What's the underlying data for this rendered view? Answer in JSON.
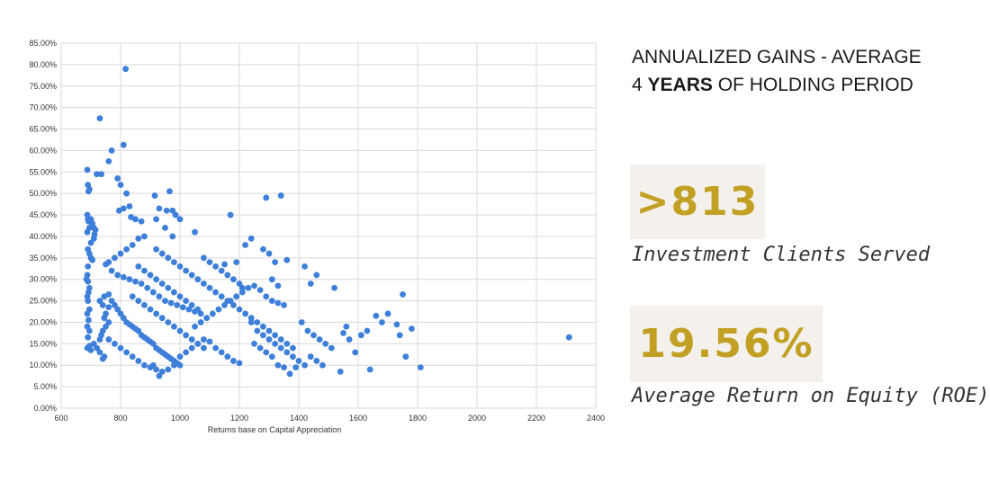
{
  "headline": {
    "line1": "ANNUALIZED GAINS - AVERAGE",
    "line2_prefix": "4 ",
    "line2_bold": "YEARS",
    "line2_suffix": " OF HOLDING PERIOD"
  },
  "stats": [
    {
      "value": ">813",
      "caption": "Investment Clients Served"
    },
    {
      "value": "19.56%",
      "caption": "Average Return on Equity (ROE)"
    }
  ],
  "colors": {
    "point": "#3d7fd9",
    "accent": "#c2a023",
    "stat_bg": "#f4f1ec"
  },
  "chart_data": {
    "type": "scatter",
    "title": "",
    "xlabel": "Returns base on Capital Appreciation",
    "ylabel": "",
    "xlim": [
      600,
      2400
    ],
    "ylim": [
      0,
      85
    ],
    "x_ticks": [
      600,
      800,
      1000,
      1200,
      1400,
      1600,
      1800,
      2000,
      2200,
      2400
    ],
    "y_ticks": [
      0,
      5,
      10,
      15,
      20,
      25,
      30,
      35,
      40,
      45,
      50,
      55,
      60,
      65,
      70,
      75,
      80,
      85
    ],
    "y_tick_labels": [
      "0.00%",
      "5.00%",
      "10.00%",
      "15.00%",
      "20.00%",
      "25.00%",
      "30.00%",
      "35.00%",
      "40.00%",
      "45.00%",
      "50.00%",
      "55.00%",
      "60.00%",
      "65.00%",
      "70.00%",
      "75.00%",
      "80.00%",
      "85.00%"
    ],
    "grid": true,
    "legend": "none",
    "points": [
      [
        688,
        55.5
      ],
      [
        690,
        52
      ],
      [
        695,
        51
      ],
      [
        692,
        50.5
      ],
      [
        688,
        45
      ],
      [
        690,
        44
      ],
      [
        692,
        43.5
      ],
      [
        695,
        42
      ],
      [
        688,
        41
      ],
      [
        700,
        44
      ],
      [
        705,
        43
      ],
      [
        710,
        42
      ],
      [
        715,
        41.5
      ],
      [
        712,
        40.5
      ],
      [
        710,
        39.5
      ],
      [
        700,
        38.5
      ],
      [
        690,
        37
      ],
      [
        695,
        36
      ],
      [
        700,
        35
      ],
      [
        705,
        34.5
      ],
      [
        690,
        33
      ],
      [
        688,
        31
      ],
      [
        685,
        30
      ],
      [
        690,
        29.5
      ],
      [
        695,
        28
      ],
      [
        692,
        27
      ],
      [
        688,
        26
      ],
      [
        690,
        25
      ],
      [
        695,
        23
      ],
      [
        688,
        22
      ],
      [
        692,
        20.5
      ],
      [
        688,
        19
      ],
      [
        695,
        18
      ],
      [
        690,
        16.5
      ],
      [
        688,
        14
      ],
      [
        695,
        14.5
      ],
      [
        700,
        13.5
      ],
      [
        710,
        15
      ],
      [
        720,
        14
      ],
      [
        730,
        13
      ],
      [
        740,
        11.5
      ],
      [
        745,
        12
      ],
      [
        735,
        17
      ],
      [
        730,
        16
      ],
      [
        740,
        18
      ],
      [
        750,
        19
      ],
      [
        760,
        20
      ],
      [
        745,
        21
      ],
      [
        750,
        22
      ],
      [
        760,
        23.5
      ],
      [
        740,
        24
      ],
      [
        730,
        25
      ],
      [
        745,
        26
      ],
      [
        760,
        26.5
      ],
      [
        770,
        25
      ],
      [
        780,
        24
      ],
      [
        790,
        23
      ],
      [
        800,
        22
      ],
      [
        810,
        21
      ],
      [
        820,
        20
      ],
      [
        830,
        19.5
      ],
      [
        840,
        19
      ],
      [
        850,
        18.5
      ],
      [
        860,
        18
      ],
      [
        870,
        17
      ],
      [
        880,
        16.5
      ],
      [
        890,
        16
      ],
      [
        900,
        15.5
      ],
      [
        910,
        15
      ],
      [
        920,
        14
      ],
      [
        930,
        13.5
      ],
      [
        940,
        13
      ],
      [
        950,
        12.5
      ],
      [
        960,
        12
      ],
      [
        970,
        11.5
      ],
      [
        980,
        11
      ],
      [
        990,
        10.5
      ],
      [
        1000,
        10
      ],
      [
        760,
        16
      ],
      [
        780,
        15
      ],
      [
        800,
        14
      ],
      [
        820,
        13
      ],
      [
        840,
        12
      ],
      [
        860,
        11
      ],
      [
        880,
        10
      ],
      [
        900,
        9.5
      ],
      [
        920,
        9
      ],
      [
        940,
        8.5
      ],
      [
        930,
        7.5
      ],
      [
        910,
        10
      ],
      [
        960,
        9
      ],
      [
        980,
        10
      ],
      [
        1000,
        12
      ],
      [
        1020,
        13
      ],
      [
        1040,
        14
      ],
      [
        1060,
        15
      ],
      [
        1080,
        16
      ],
      [
        1100,
        15.5
      ],
      [
        1120,
        14
      ],
      [
        1140,
        13
      ],
      [
        1160,
        12
      ],
      [
        1180,
        11
      ],
      [
        1200,
        10.5
      ],
      [
        1050,
        19
      ],
      [
        1070,
        20
      ],
      [
        1090,
        21
      ],
      [
        1110,
        22
      ],
      [
        1130,
        23
      ],
      [
        1150,
        24
      ],
      [
        1170,
        25
      ],
      [
        1190,
        26
      ],
      [
        1210,
        27
      ],
      [
        1230,
        28
      ],
      [
        1250,
        28.5
      ],
      [
        1270,
        27.5
      ],
      [
        1290,
        26
      ],
      [
        1310,
        25
      ],
      [
        1330,
        24.5
      ],
      [
        1350,
        24
      ],
      [
        1240,
        20
      ],
      [
        1260,
        18
      ],
      [
        1280,
        17
      ],
      [
        1300,
        16
      ],
      [
        1320,
        15
      ],
      [
        1340,
        14
      ],
      [
        1360,
        13
      ],
      [
        1380,
        12
      ],
      [
        1400,
        11
      ],
      [
        1420,
        10
      ],
      [
        1250,
        15
      ],
      [
        1270,
        14
      ],
      [
        1290,
        13
      ],
      [
        1310,
        12
      ],
      [
        1330,
        10
      ],
      [
        1350,
        9.5
      ],
      [
        1370,
        8
      ],
      [
        1390,
        9.5
      ],
      [
        1410,
        20
      ],
      [
        1430,
        18
      ],
      [
        1450,
        17
      ],
      [
        1470,
        16
      ],
      [
        1490,
        15
      ],
      [
        1510,
        14
      ],
      [
        1440,
        12
      ],
      [
        1460,
        11
      ],
      [
        1480,
        10
      ],
      [
        1540,
        8.5
      ],
      [
        1550,
        17.5
      ],
      [
        1560,
        19
      ],
      [
        1570,
        16
      ],
      [
        1590,
        13
      ],
      [
        1610,
        17
      ],
      [
        1630,
        18
      ],
      [
        1640,
        9
      ],
      [
        1660,
        21.5
      ],
      [
        1680,
        20
      ],
      [
        1700,
        22
      ],
      [
        1730,
        19.5
      ],
      [
        1740,
        17
      ],
      [
        1750,
        26.5
      ],
      [
        1760,
        12
      ],
      [
        1780,
        18.5
      ],
      [
        1810,
        9.5
      ],
      [
        2310,
        16.5
      ],
      [
        730,
        67.5
      ],
      [
        770,
        60
      ],
      [
        810,
        61.3
      ],
      [
        817,
        79
      ],
      [
        760,
        57.5
      ],
      [
        735,
        54.5
      ],
      [
        720,
        54.5
      ],
      [
        790,
        53.5
      ],
      [
        800,
        52
      ],
      [
        820,
        50
      ],
      [
        830,
        47
      ],
      [
        795,
        46
      ],
      [
        810,
        46.5
      ],
      [
        835,
        44.5
      ],
      [
        850,
        44
      ],
      [
        870,
        43.5
      ],
      [
        880,
        40
      ],
      [
        860,
        39.5
      ],
      [
        840,
        38
      ],
      [
        820,
        37
      ],
      [
        800,
        36
      ],
      [
        780,
        35
      ],
      [
        760,
        34
      ],
      [
        750,
        33.5
      ],
      [
        770,
        32
      ],
      [
        790,
        31
      ],
      [
        810,
        30.5
      ],
      [
        830,
        30
      ],
      [
        850,
        29.5
      ],
      [
        870,
        29
      ],
      [
        890,
        28
      ],
      [
        910,
        27
      ],
      [
        930,
        26
      ],
      [
        950,
        25
      ],
      [
        970,
        24.5
      ],
      [
        990,
        24
      ],
      [
        1010,
        23.5
      ],
      [
        1030,
        23
      ],
      [
        1050,
        22.5
      ],
      [
        1070,
        22
      ],
      [
        915,
        49.5
      ],
      [
        955,
        46
      ],
      [
        975,
        46
      ],
      [
        965,
        50.5
      ],
      [
        930,
        46.5
      ],
      [
        950,
        42
      ],
      [
        920,
        44
      ],
      [
        985,
        45
      ],
      [
        1000,
        44
      ],
      [
        975,
        40
      ],
      [
        1050,
        41
      ],
      [
        920,
        37
      ],
      [
        940,
        36
      ],
      [
        960,
        35
      ],
      [
        980,
        34
      ],
      [
        1000,
        33
      ],
      [
        1020,
        32
      ],
      [
        1040,
        31
      ],
      [
        1060,
        30
      ],
      [
        1080,
        35
      ],
      [
        1100,
        34
      ],
      [
        1120,
        33
      ],
      [
        1140,
        32
      ],
      [
        1160,
        31
      ],
      [
        1180,
        30
      ],
      [
        1200,
        29
      ],
      [
        1080,
        29
      ],
      [
        1100,
        28
      ],
      [
        1120,
        27
      ],
      [
        1140,
        26
      ],
      [
        1160,
        25
      ],
      [
        1180,
        24
      ],
      [
        1200,
        23
      ],
      [
        1220,
        22
      ],
      [
        1240,
        21
      ],
      [
        1260,
        20
      ],
      [
        1280,
        19
      ],
      [
        1300,
        18
      ],
      [
        1320,
        17
      ],
      [
        1340,
        16
      ],
      [
        1360,
        15
      ],
      [
        1380,
        14
      ],
      [
        1170,
        45
      ],
      [
        1220,
        38
      ],
      [
        1240,
        39.5
      ],
      [
        1280,
        37
      ],
      [
        1290,
        49
      ],
      [
        1340,
        49.5
      ],
      [
        1300,
        36
      ],
      [
        1320,
        34
      ],
      [
        1360,
        34.5
      ],
      [
        1310,
        30
      ],
      [
        1330,
        28.5
      ],
      [
        1420,
        33
      ],
      [
        1440,
        29
      ],
      [
        1460,
        31
      ],
      [
        1520,
        28
      ],
      [
        1150,
        33.5
      ],
      [
        1190,
        34
      ],
      [
        1210,
        28
      ],
      [
        860,
        33
      ],
      [
        880,
        32
      ],
      [
        900,
        31
      ],
      [
        920,
        30
      ],
      [
        940,
        29
      ],
      [
        960,
        28
      ],
      [
        980,
        27
      ],
      [
        1000,
        26
      ],
      [
        1020,
        25
      ],
      [
        1040,
        24
      ],
      [
        1060,
        23
      ],
      [
        840,
        26
      ],
      [
        860,
        25
      ],
      [
        880,
        24
      ],
      [
        900,
        23
      ],
      [
        920,
        22
      ],
      [
        940,
        21
      ],
      [
        960,
        20
      ],
      [
        980,
        19
      ],
      [
        1000,
        18
      ],
      [
        1020,
        17
      ],
      [
        1040,
        16
      ],
      [
        1060,
        15
      ],
      [
        1080,
        14
      ]
    ]
  }
}
